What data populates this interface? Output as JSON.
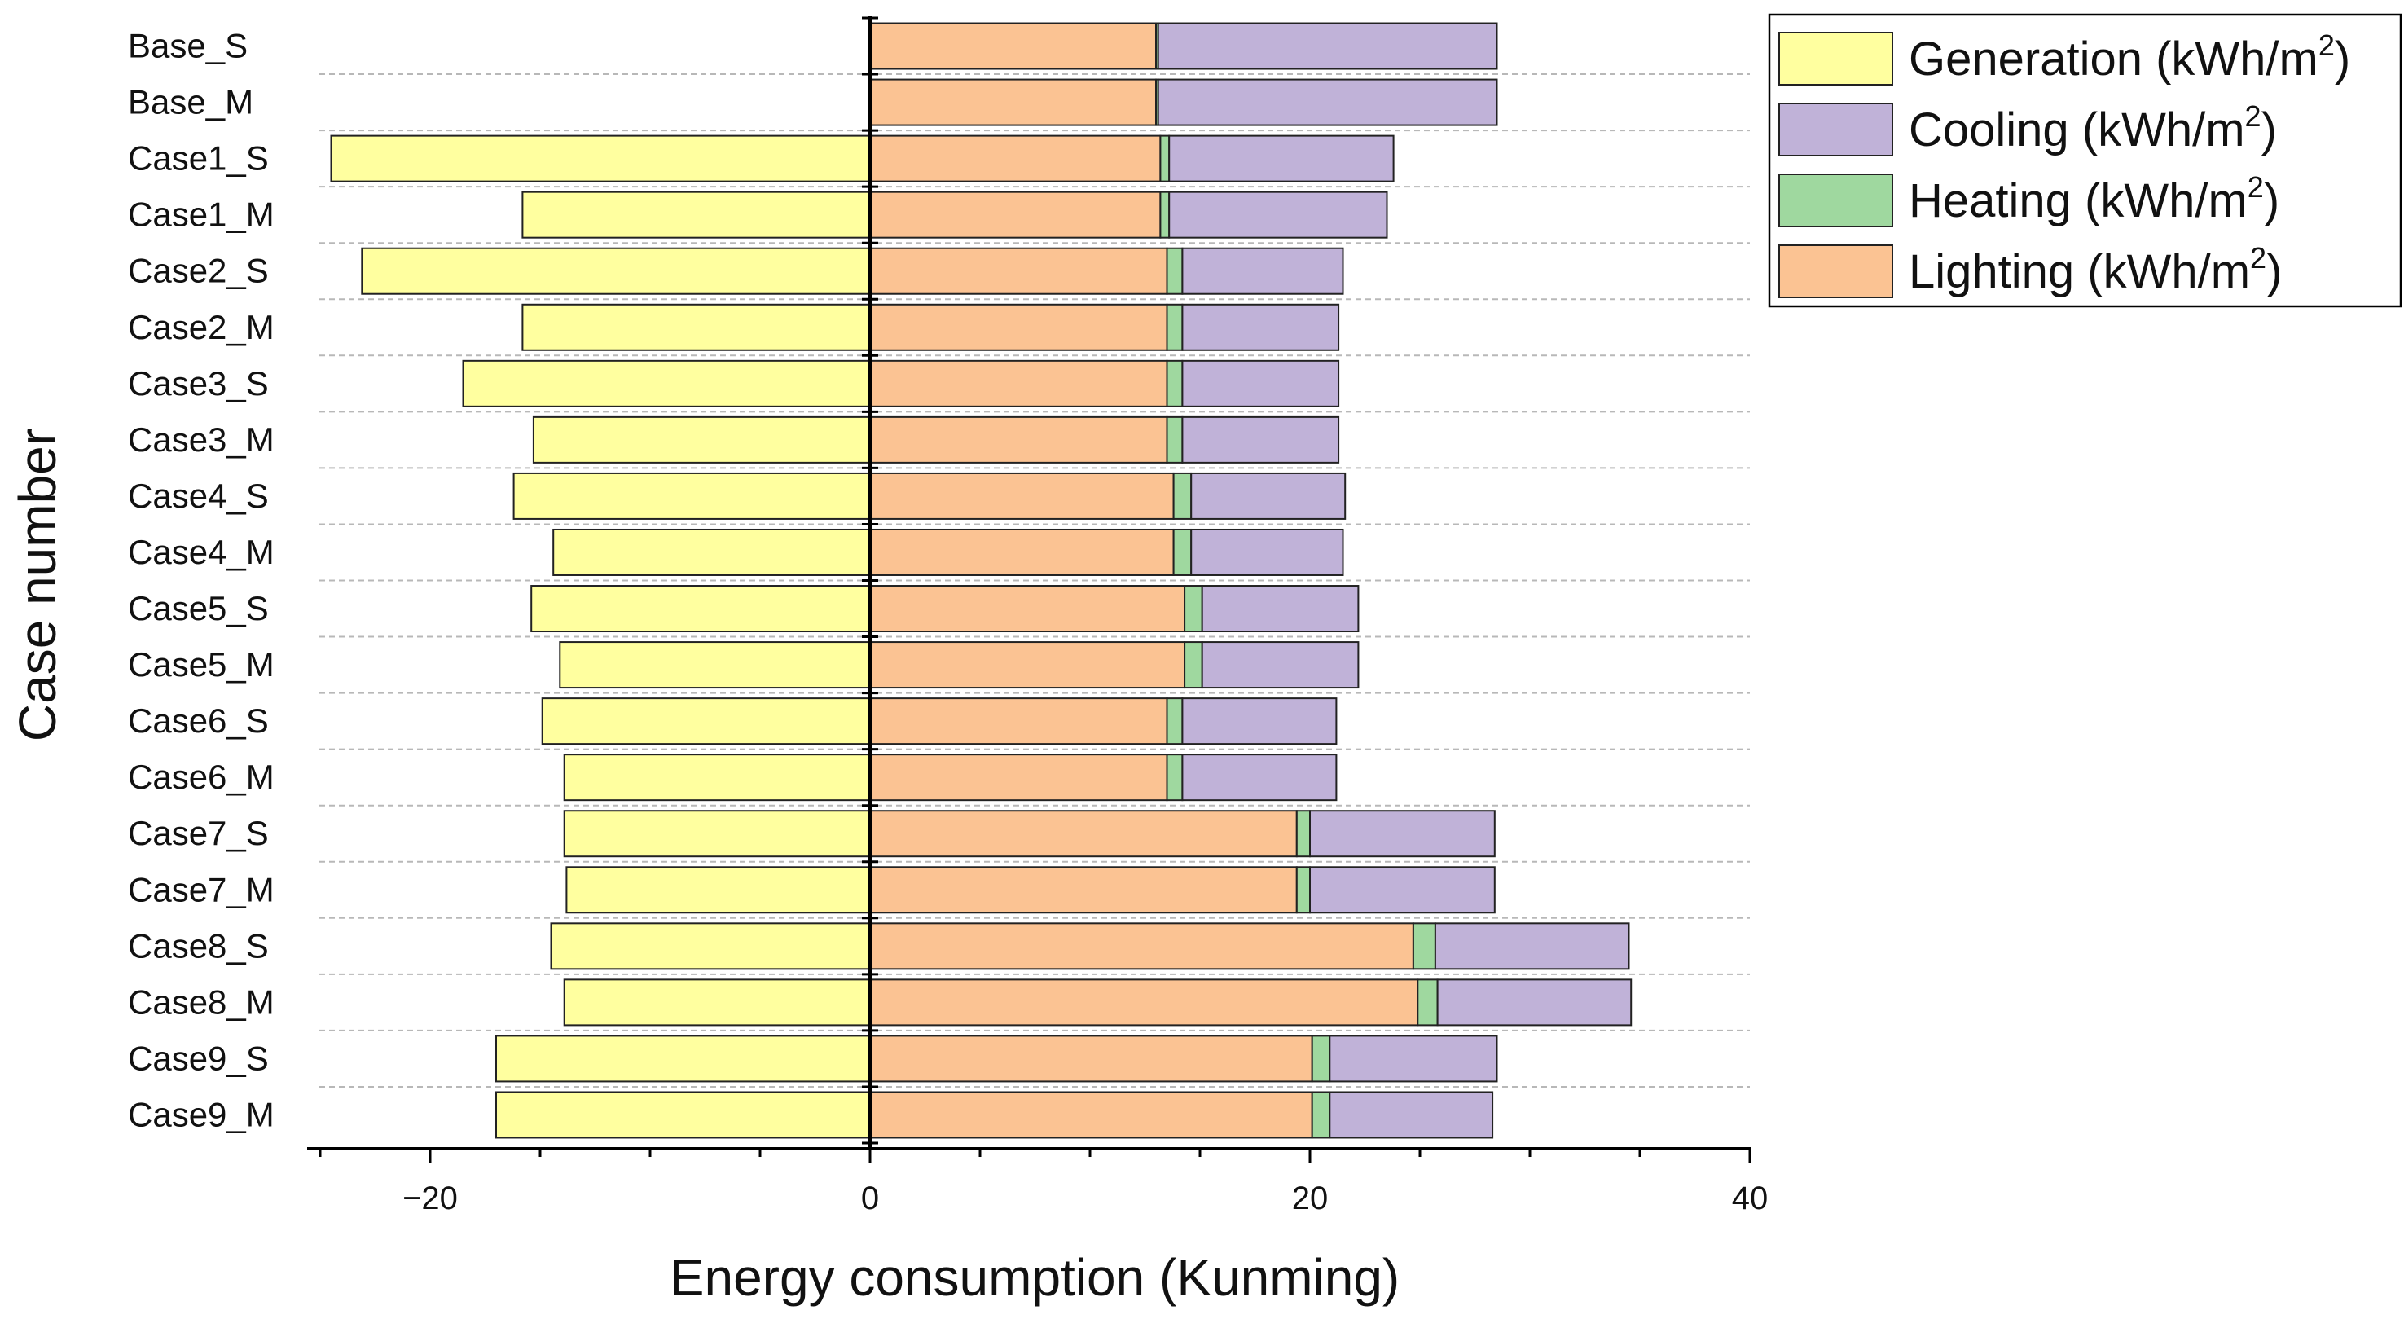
{
  "chart_data": {
    "type": "bar",
    "orientation": "horizontal",
    "stacked": true,
    "xlabel": "Energy consumption (Kunming)",
    "ylabel": "Case number",
    "xlim": [
      -25,
      40
    ],
    "xticks": [
      -20,
      0,
      20,
      40
    ],
    "xtick_labels": [
      "−20",
      "0",
      "20",
      "40"
    ],
    "grid": "horizontal dashed",
    "legend_position": "top-right",
    "categories": [
      "Base_S",
      "Base_M",
      "Case1_S",
      "Case1_M",
      "Case2_S",
      "Case2_M",
      "Case3_S",
      "Case3_M",
      "Case4_S",
      "Case4_M",
      "Case5_S",
      "Case5_M",
      "Case6_S",
      "Case6_M",
      "Case7_S",
      "Case7_M",
      "Case8_S",
      "Case8_M",
      "Case9_S",
      "Case9_M"
    ],
    "series": [
      {
        "key": "generation",
        "name": "Generation (kWh/m",
        "sup": "2",
        "suffix": ")",
        "color": "#ffff9f",
        "values": [
          0,
          0,
          -24.5,
          -15.8,
          -23.1,
          -15.8,
          -18.5,
          -15.3,
          -16.2,
          -14.4,
          -15.4,
          -14.1,
          -14.9,
          -13.9,
          -13.9,
          -13.8,
          -14.5,
          -13.9,
          -17.0,
          -17.0
        ]
      },
      {
        "key": "lighting",
        "name": "Lighting (kWh/m",
        "sup": "2",
        "suffix": ")",
        "color": "#fbc393",
        "values": [
          13.0,
          13.0,
          13.2,
          13.2,
          13.5,
          13.5,
          13.5,
          13.5,
          13.8,
          13.8,
          14.3,
          14.3,
          13.5,
          13.5,
          19.4,
          19.4,
          24.7,
          24.9,
          20.1,
          20.1
        ]
      },
      {
        "key": "heating",
        "name": "Heating (kWh/m",
        "sup": "2",
        "suffix": ")",
        "color": "#9fd89f",
        "values": [
          0.1,
          0.1,
          0.4,
          0.4,
          0.7,
          0.7,
          0.7,
          0.7,
          0.8,
          0.8,
          0.8,
          0.8,
          0.7,
          0.7,
          0.6,
          0.6,
          1.0,
          0.9,
          0.8,
          0.8
        ]
      },
      {
        "key": "cooling",
        "name": "Cooling (kWh/m",
        "sup": "2",
        "suffix": ")",
        "color": "#c0b2d8",
        "values": [
          15.4,
          15.4,
          10.2,
          9.9,
          7.3,
          7.1,
          7.1,
          7.1,
          7.0,
          6.9,
          7.1,
          7.1,
          7.0,
          7.0,
          8.4,
          8.4,
          8.8,
          8.8,
          7.6,
          7.4
        ]
      }
    ],
    "legend_order": [
      "generation",
      "cooling",
      "heating",
      "lighting"
    ]
  }
}
